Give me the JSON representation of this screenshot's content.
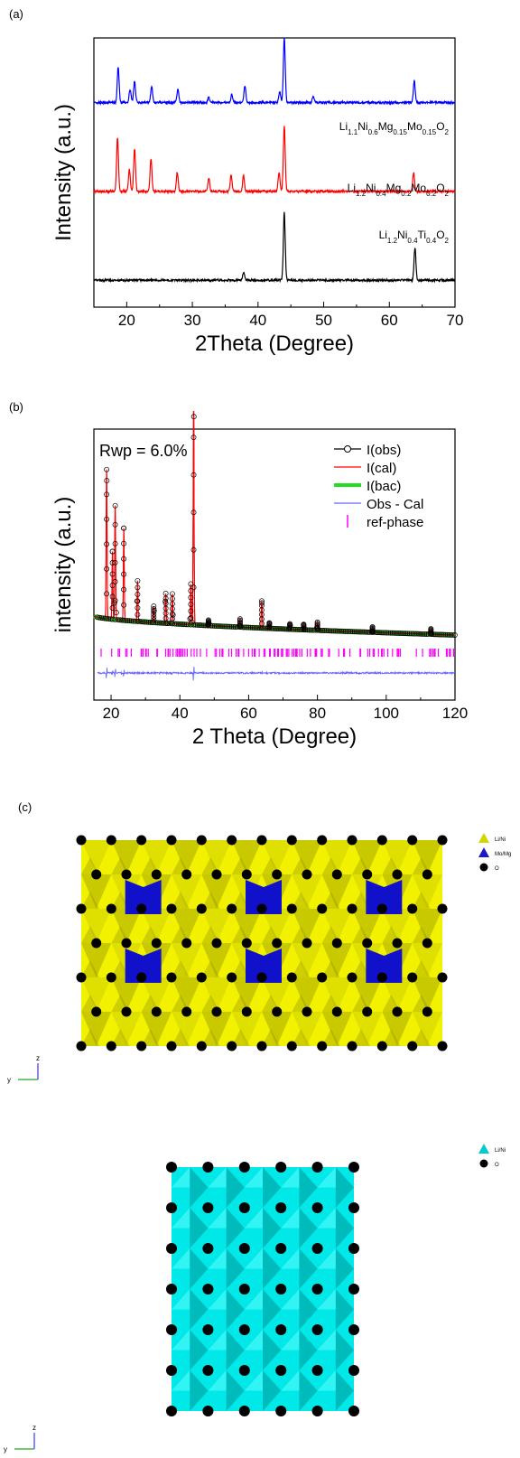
{
  "panels": {
    "a": "(a)",
    "b": "(b)",
    "c": "(c)"
  },
  "chart_data": [
    {
      "type": "line",
      "xlabel": "2Theta (Degree)",
      "ylabel": "Intensity (a.u.)",
      "xlim": [
        15,
        70
      ],
      "xticks": [
        20,
        30,
        40,
        50,
        60,
        70
      ],
      "yticks": false,
      "series": [
        {
          "name": "Li1.1Ni0.6Mg0.15Mo0.15O2",
          "color": "#0000ff",
          "baseline": 0.76,
          "peaks": [
            [
              18.7,
              0.13
            ],
            [
              20.5,
              0.05
            ],
            [
              21.2,
              0.08
            ],
            [
              23.8,
              0.06
            ],
            [
              27.8,
              0.05
            ],
            [
              32.5,
              0.02
            ],
            [
              36.0,
              0.03
            ],
            [
              38.0,
              0.06
            ],
            [
              43.3,
              0.04
            ],
            [
              44.0,
              0.24
            ],
            [
              48.4,
              0.02
            ],
            [
              63.8,
              0.08
            ]
          ]
        },
        {
          "name": "Li1.2Ni0.4Mg0.2Mo0.2O2",
          "color": "#ff0000",
          "baseline": 0.43,
          "peaks": [
            [
              18.6,
              0.2
            ],
            [
              20.4,
              0.08
            ],
            [
              21.2,
              0.16
            ],
            [
              23.7,
              0.12
            ],
            [
              27.7,
              0.07
            ],
            [
              32.5,
              0.05
            ],
            [
              35.9,
              0.06
            ],
            [
              37.8,
              0.06
            ],
            [
              43.2,
              0.07
            ],
            [
              44.0,
              0.24
            ],
            [
              63.7,
              0.07
            ]
          ]
        },
        {
          "name": "Li1.2Ni0.4Ti0.4O2",
          "color": "#000000",
          "baseline": 0.1,
          "peaks": [
            [
              37.8,
              0.03
            ],
            [
              44.0,
              0.25
            ],
            [
              63.9,
              0.12
            ]
          ]
        }
      ],
      "series_labels": [
        {
          "parts": [
            [
              "Li",
              ""
            ],
            [
              "1.1",
              "sub"
            ],
            [
              "Ni",
              ""
            ],
            [
              "0.6",
              "sub"
            ],
            [
              "Mg",
              ""
            ],
            [
              "0.15",
              "sub"
            ],
            [
              "Mo",
              ""
            ],
            [
              "0.15",
              "sub"
            ],
            [
              "O",
              ""
            ],
            [
              "2",
              "sub"
            ]
          ]
        },
        {
          "parts": [
            [
              "Li",
              ""
            ],
            [
              "1.2",
              "sub"
            ],
            [
              "Ni",
              ""
            ],
            [
              "0.4",
              "sub"
            ],
            [
              "Mg",
              ""
            ],
            [
              "0.2",
              "sub"
            ],
            [
              "Mo",
              ""
            ],
            [
              "0.2",
              "sub"
            ],
            [
              "O",
              ""
            ],
            [
              "2",
              "sub"
            ]
          ]
        },
        {
          "parts": [
            [
              "Li",
              ""
            ],
            [
              "1.2",
              "sub"
            ],
            [
              "Ni",
              ""
            ],
            [
              "0.4",
              "sub"
            ],
            [
              "Ti",
              ""
            ],
            [
              "0.4",
              "sub"
            ],
            [
              "O",
              ""
            ],
            [
              "2",
              "sub"
            ]
          ]
        }
      ]
    },
    {
      "type": "line",
      "xlabel": "2 Theta (Degree)",
      "ylabel": "intensity (a.u.)",
      "xlim": [
        15,
        120
      ],
      "xticks": [
        20,
        40,
        60,
        80,
        100,
        120
      ],
      "yticks": false,
      "annotation": "Rwp = 6.0%",
      "legend_position": "top-right",
      "legend": [
        {
          "label": "I(obs)",
          "color": "#000000",
          "style": "line-circle"
        },
        {
          "label": "I(cal)",
          "color": "#ff0000",
          "style": "line"
        },
        {
          "label": "I(bac)",
          "color": "#22dd22",
          "style": "thick-line"
        },
        {
          "label": "Obs - Cal",
          "color": "#6666ff",
          "style": "line"
        },
        {
          "label": "ref-phase",
          "color": "#ff00ff",
          "style": "tick"
        }
      ],
      "background": {
        "start": 0.31,
        "end": 0.24
      },
      "peaks": [
        [
          18.7,
          0.55
        ],
        [
          20.4,
          0.25
        ],
        [
          21.2,
          0.42
        ],
        [
          23.7,
          0.34
        ],
        [
          27.7,
          0.15
        ],
        [
          32.4,
          0.06
        ],
        [
          35.9,
          0.11
        ],
        [
          37.8,
          0.11
        ],
        [
          43.2,
          0.15
        ],
        [
          44.0,
          0.83
        ],
        [
          48.3,
          0.02
        ],
        [
          57.5,
          0.03
        ],
        [
          63.8,
          0.1
        ],
        [
          66.0,
          0.02
        ],
        [
          72.0,
          0.02
        ],
        [
          76.0,
          0.02
        ],
        [
          80.0,
          0.03
        ],
        [
          96.0,
          0.02
        ],
        [
          113.0,
          0.02
        ]
      ],
      "ref_phase_range": [
        17,
        120
      ],
      "ref_phase_baseline": 0.19,
      "difference_baseline": 0.1
    }
  ],
  "structures": [
    {
      "legend": [
        {
          "label": "Li/Ni",
          "color": "#d4d400",
          "shape": "triangle"
        },
        {
          "label": "Mo/Mg",
          "color": "#1a1acc",
          "shape": "triangle"
        },
        {
          "label": "O",
          "color": "#000000",
          "shape": "circle"
        }
      ],
      "axes": {
        "up": "z",
        "left": "y"
      }
    },
    {
      "legend": [
        {
          "label": "Li/Ni",
          "color": "#00cccc",
          "shape": "triangle"
        },
        {
          "label": "O",
          "color": "#000000",
          "shape": "circle"
        }
      ],
      "axes": {
        "up": "z",
        "left": "y"
      }
    }
  ]
}
